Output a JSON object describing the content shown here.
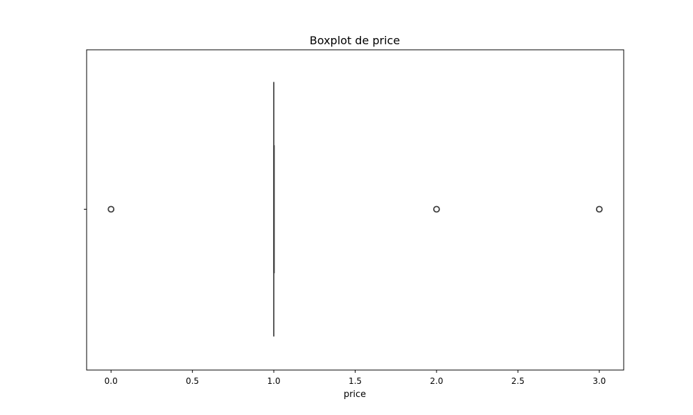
{
  "chart_data": {
    "type": "box",
    "title": "Boxplot de price",
    "xlabel": "price",
    "ylabel": "",
    "orientation": "horizontal",
    "xlim": [
      -0.15,
      3.15
    ],
    "xticks": [
      0.0,
      0.5,
      1.0,
      1.5,
      2.0,
      2.5,
      3.0
    ],
    "xtick_labels": [
      "0.0",
      "0.5",
      "1.0",
      "1.5",
      "2.0",
      "2.5",
      "3.0"
    ],
    "grid": false,
    "box": {
      "whislo": 1.0,
      "q1": 1.0,
      "median": 1.0,
      "q3": 1.0,
      "whishi": 1.0
    },
    "outliers": [
      0.0,
      2.0,
      3.0
    ],
    "colors": {
      "box_edge": "#3f3f3f",
      "outlier_edge": "#3f3f3f",
      "axes": "#000000"
    }
  }
}
